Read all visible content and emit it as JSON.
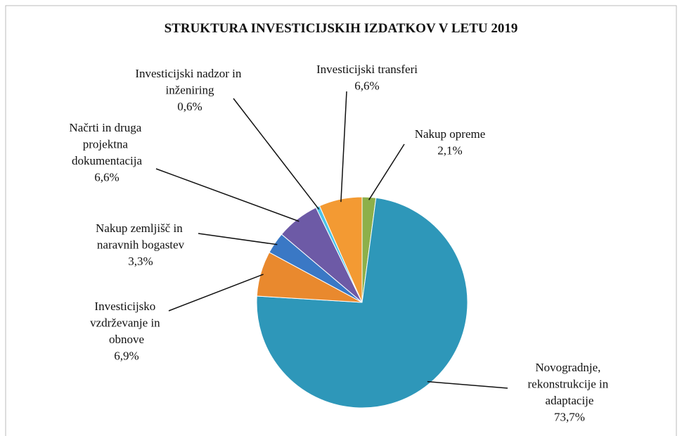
{
  "chart_data": {
    "type": "pie",
    "title": "STRUKTURA  INVESTICIJSKIH IZDATKOV V LETU 2019",
    "categories": [
      "Nakup opreme",
      "Novogradnje, rekonstrukcije in adaptacije",
      "Investicijsko vzdrževanje in obnove",
      "Nakup zemljišč in naravnih bogastev",
      "Načrti in druga projektna dokumentacija",
      "Investicijski nadzor in inženiring",
      "Investicijski transferi"
    ],
    "values": [
      2.1,
      73.7,
      6.9,
      3.3,
      6.6,
      0.6,
      6.6
    ],
    "value_labels": [
      "2,1%",
      "73,7%",
      "6,9%",
      "3,3%",
      "6,6%",
      "0,6%",
      "6,6%"
    ],
    "colors": [
      "#8db04a",
      "#2e97b9",
      "#e9892e",
      "#3a78c5",
      "#6d5aa6",
      "#4dc3e8",
      "#f39a33"
    ],
    "start_angle": 0,
    "direction": "clockwise"
  }
}
